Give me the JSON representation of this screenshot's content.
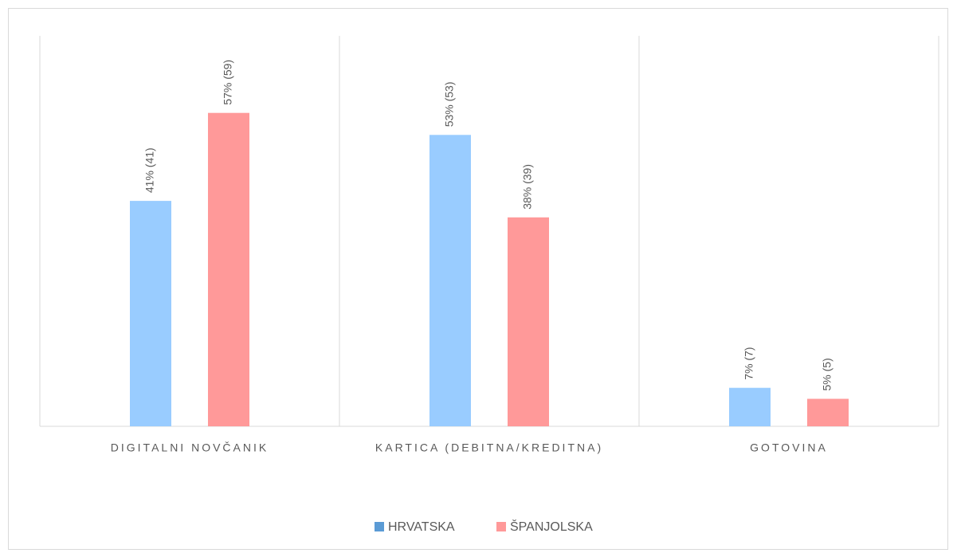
{
  "chart_data": {
    "type": "bar",
    "categories": [
      "DIGITALNI NOVČANIK",
      "KARTICA (DEBITNA/KREDITNA)",
      "GOTOVINA"
    ],
    "series": [
      {
        "name": "HRVATSKA",
        "color": "#99ccff",
        "values": [
          41,
          53,
          7
        ],
        "value_labels": [
          "41% (41)",
          "53% (53)",
          "7% (7)"
        ]
      },
      {
        "name": "ŠPANJOLSKA",
        "color": "#ff9999",
        "values": [
          57,
          38,
          5
        ],
        "value_labels": [
          "57% (59)",
          "38% (39)",
          "5% (5)"
        ]
      }
    ],
    "grid": false,
    "legend": "bottom"
  }
}
